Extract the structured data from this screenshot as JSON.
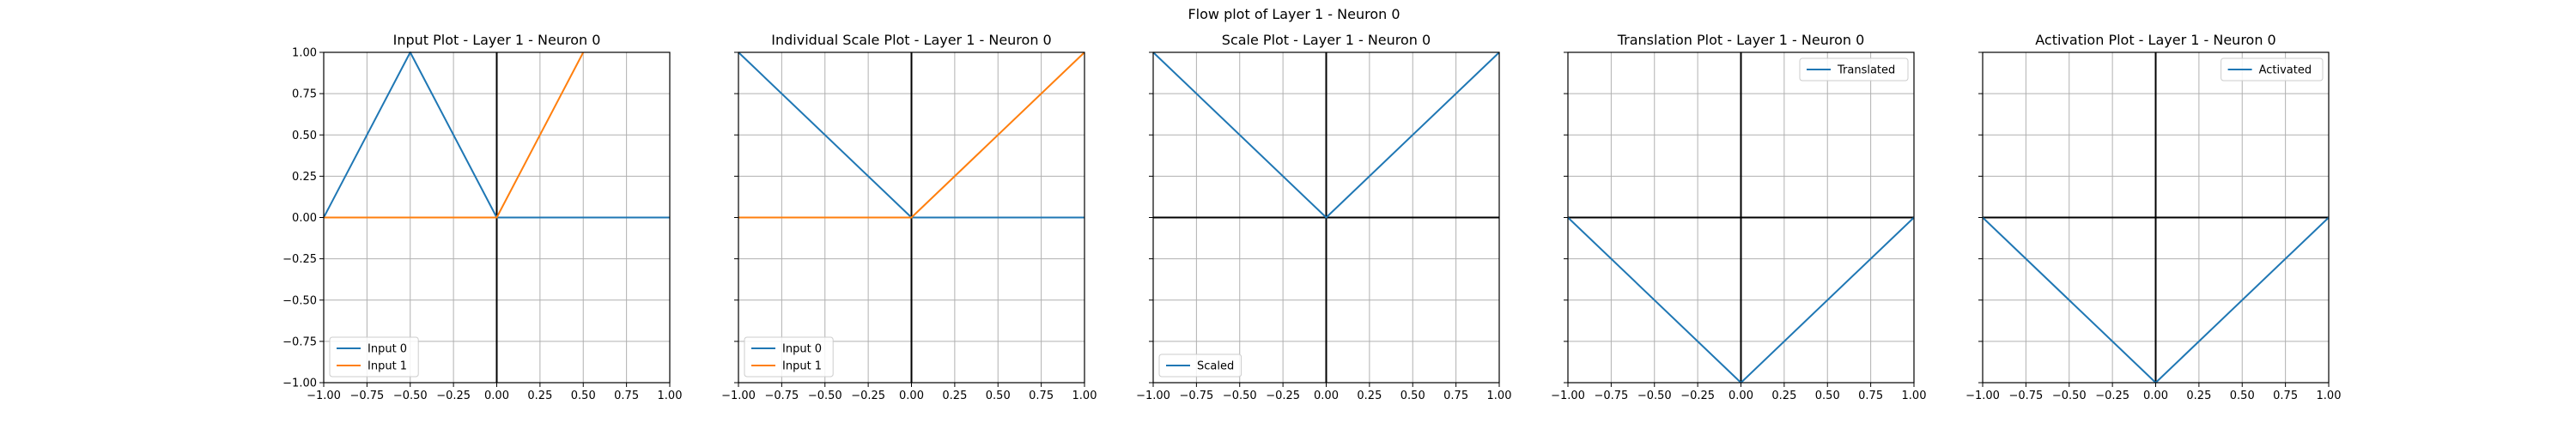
{
  "figure": {
    "suptitle": "Flow plot of Layer 1 - Neuron 0"
  },
  "style": {
    "blue": "#1f77b4",
    "orange": "#ff7f0e",
    "grid": "#b0b0b0",
    "zero_line": "#000000"
  },
  "chart_data": [
    {
      "type": "line",
      "title": "Input Plot - Layer 1 - Neuron 0",
      "xlim": [
        -1,
        1
      ],
      "ylim": [
        -1,
        1
      ],
      "grid": true,
      "zero_lines": true,
      "show_y_tick_labels": true,
      "x_ticks": [
        -1.0,
        -0.75,
        -0.5,
        -0.25,
        0.0,
        0.25,
        0.5,
        0.75,
        1.0
      ],
      "x_tick_labels": [
        "−1.00",
        "−0.75",
        "−0.50",
        "−0.25",
        "0.00",
        "0.25",
        "0.50",
        "0.75",
        "1.00"
      ],
      "y_ticks": [
        -1.0,
        -0.75,
        -0.5,
        -0.25,
        0.0,
        0.25,
        0.5,
        0.75,
        1.0
      ],
      "y_tick_labels": [
        "−1.00",
        "−0.75",
        "−0.50",
        "−0.25",
        "0.00",
        "0.25",
        "0.50",
        "0.75",
        "1.00"
      ],
      "legend_loc": "lower-left",
      "series": [
        {
          "name": "Input 0",
          "color": "#1f77b4",
          "x": [
            -1,
            -0.5,
            0,
            1
          ],
          "y": [
            0,
            1,
            0,
            0
          ]
        },
        {
          "name": "Input 1",
          "color": "#ff7f0e",
          "x": [
            -1,
            0,
            0.5
          ],
          "y": [
            0,
            0,
            1
          ]
        }
      ]
    },
    {
      "type": "line",
      "title": "Individual Scale Plot - Layer 1 - Neuron 0",
      "xlim": [
        -1,
        1
      ],
      "ylim": [
        -1,
        1
      ],
      "grid": true,
      "zero_lines": true,
      "show_y_tick_labels": false,
      "x_ticks": [
        -1.0,
        -0.75,
        -0.5,
        -0.25,
        0.0,
        0.25,
        0.5,
        0.75,
        1.0
      ],
      "x_tick_labels": [
        "−1.00",
        "−0.75",
        "−0.50",
        "−0.25",
        "0.00",
        "0.25",
        "0.50",
        "0.75",
        "1.00"
      ],
      "y_ticks": [
        -1.0,
        -0.75,
        -0.5,
        -0.25,
        0.0,
        0.25,
        0.5,
        0.75,
        1.0
      ],
      "legend_loc": "lower-left",
      "series": [
        {
          "name": "Input 0",
          "color": "#1f77b4",
          "x": [
            -1,
            0,
            1
          ],
          "y": [
            1,
            0,
            0
          ]
        },
        {
          "name": "Input 1",
          "color": "#ff7f0e",
          "x": [
            -1,
            0,
            1
          ],
          "y": [
            0,
            0,
            1
          ]
        }
      ]
    },
    {
      "type": "line",
      "title": "Scale Plot - Layer 1 - Neuron 0",
      "xlim": [
        -1,
        1
      ],
      "ylim": [
        -1,
        1
      ],
      "grid": true,
      "zero_lines": true,
      "show_y_tick_labels": false,
      "x_ticks": [
        -1.0,
        -0.75,
        -0.5,
        -0.25,
        0.0,
        0.25,
        0.5,
        0.75,
        1.0
      ],
      "x_tick_labels": [
        "−1.00",
        "−0.75",
        "−0.50",
        "−0.25",
        "0.00",
        "0.25",
        "0.50",
        "0.75",
        "1.00"
      ],
      "y_ticks": [
        -1.0,
        -0.75,
        -0.5,
        -0.25,
        0.0,
        0.25,
        0.5,
        0.75,
        1.0
      ],
      "legend_loc": "lower-left",
      "series": [
        {
          "name": "Scaled",
          "color": "#1f77b4",
          "x": [
            -1,
            0,
            1
          ],
          "y": [
            1,
            0,
            1
          ]
        }
      ]
    },
    {
      "type": "line",
      "title": "Translation Plot - Layer 1 - Neuron 0",
      "xlim": [
        -1,
        1
      ],
      "ylim": [
        -1,
        1
      ],
      "grid": true,
      "zero_lines": true,
      "show_y_tick_labels": false,
      "x_ticks": [
        -1.0,
        -0.75,
        -0.5,
        -0.25,
        0.0,
        0.25,
        0.5,
        0.75,
        1.0
      ],
      "x_tick_labels": [
        "−1.00",
        "−0.75",
        "−0.50",
        "−0.25",
        "0.00",
        "0.25",
        "0.50",
        "0.75",
        "1.00"
      ],
      "y_ticks": [
        -1.0,
        -0.75,
        -0.5,
        -0.25,
        0.0,
        0.25,
        0.5,
        0.75,
        1.0
      ],
      "legend_loc": "upper-right",
      "series": [
        {
          "name": "Translated",
          "color": "#1f77b4",
          "x": [
            -1,
            0,
            1
          ],
          "y": [
            0,
            -1,
            0
          ]
        }
      ]
    },
    {
      "type": "line",
      "title": "Activation Plot - Layer 1 - Neuron 0",
      "xlim": [
        -1,
        1
      ],
      "ylim": [
        -1,
        1
      ],
      "grid": true,
      "zero_lines": true,
      "show_y_tick_labels": false,
      "x_ticks": [
        -1.0,
        -0.75,
        -0.5,
        -0.25,
        0.0,
        0.25,
        0.5,
        0.75,
        1.0
      ],
      "x_tick_labels": [
        "−1.00",
        "−0.75",
        "−0.50",
        "−0.25",
        "0.00",
        "0.25",
        "0.50",
        "0.75",
        "1.00"
      ],
      "y_ticks": [
        -1.0,
        -0.75,
        -0.5,
        -0.25,
        0.0,
        0.25,
        0.5,
        0.75,
        1.0
      ],
      "legend_loc": "upper-right",
      "series": [
        {
          "name": "Activated",
          "color": "#1f77b4",
          "x": [
            -1,
            0,
            1
          ],
          "y": [
            0,
            -1,
            0
          ]
        }
      ]
    }
  ]
}
